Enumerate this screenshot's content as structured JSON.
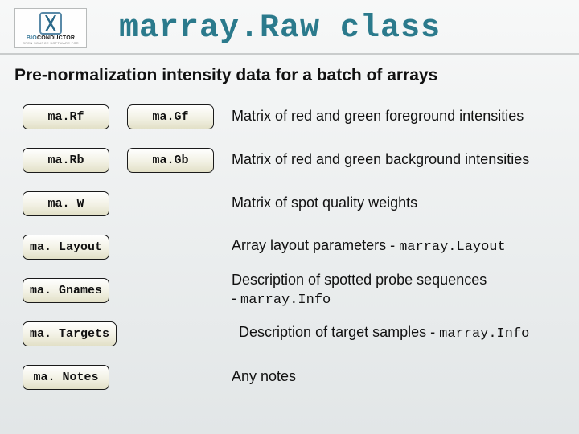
{
  "logo": {
    "brand_bio": "BIO",
    "brand_conductor": "CONDUCTOR",
    "tagline": "OPEN SOURCE SOFTWARE FOR"
  },
  "title": {
    "part1": "marray.Raw",
    "part2": " class"
  },
  "subtitle": "Pre-normalization intensity data for a batch of arrays",
  "rows": [
    {
      "slot1": "ma.Rf",
      "slot2": "ma.Gf",
      "desc": "Matrix of red and green foreground intensities"
    },
    {
      "slot1": "ma.Rb",
      "slot2": "ma.Gb",
      "desc": "Matrix of red and green background intensities"
    },
    {
      "slot1": "ma. W",
      "desc": "Matrix of spot quality weights"
    },
    {
      "slot1": "ma. Layout",
      "desc_pre": "Array layout parameters - ",
      "desc_code": "marray.Layout"
    },
    {
      "slot1": "ma. Gnames",
      "desc_pre": "Description of spotted probe sequences",
      "desc_sep": " - ",
      "desc_code": "marray.Info"
    },
    {
      "slot1": "ma. Targets",
      "desc_pre": "Description of target samples - ",
      "desc_code": "marray.Info"
    },
    {
      "slot1": "ma. Notes",
      "desc": "Any notes"
    }
  ],
  "colors": {
    "title_color": "#2b7a8c",
    "slot_border": "#1a1a1a",
    "slot_bg_top": "#ffffff",
    "slot_bg_bottom": "#e2e0c7",
    "body_bg_top": "#f7f8f8",
    "body_bg_bottom": "#e2e6e7",
    "hr_color": "#c9cccc"
  },
  "fonts": {
    "title_pt": 40,
    "subtitle_pt": 21,
    "slot_pt": 15,
    "desc_pt": 18
  }
}
